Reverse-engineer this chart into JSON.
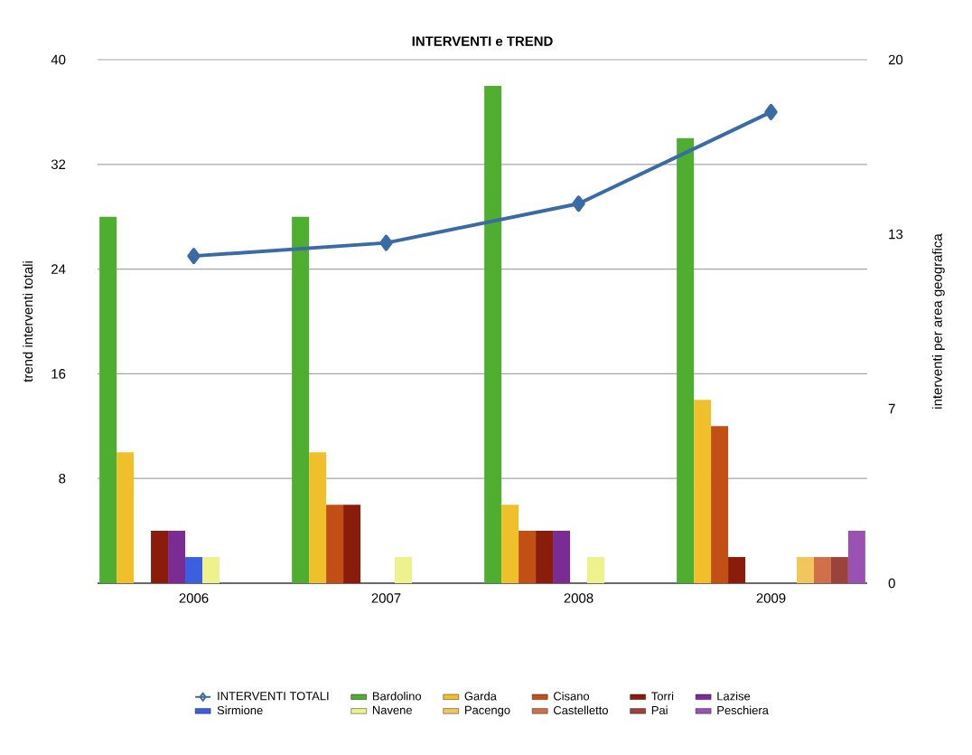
{
  "chart_data": {
    "type": "bar",
    "title": "INTERVENTI e TREND",
    "ylabel": "trend interventi totali",
    "y2label": "interventi per area geografica",
    "categories": [
      "2006",
      "2007",
      "2008",
      "2009"
    ],
    "series": [
      {
        "name": "INTERVENTI TOTALI",
        "type": "line",
        "axis": "y",
        "color": "#3b6ba5",
        "values": [
          25,
          26,
          29,
          36
        ]
      },
      {
        "name": "Bardolino",
        "axis": "y2",
        "color": "#4fae30",
        "values": [
          14,
          14,
          19,
          17
        ]
      },
      {
        "name": "Garda",
        "axis": "y2",
        "color": "#efbf2c",
        "values": [
          5,
          5,
          3,
          7
        ]
      },
      {
        "name": "Cisano",
        "axis": "y2",
        "color": "#c24f16",
        "values": [
          0,
          3,
          2,
          6
        ]
      },
      {
        "name": "Torri",
        "axis": "y2",
        "color": "#8a1c0c",
        "values": [
          2,
          3,
          2,
          1
        ]
      },
      {
        "name": "Lazise",
        "axis": "y2",
        "color": "#7a2c92",
        "values": [
          2,
          0,
          2,
          0
        ]
      },
      {
        "name": "Sirmione",
        "axis": "y2",
        "color": "#3b5fe0",
        "values": [
          1,
          0,
          0,
          0
        ]
      },
      {
        "name": "Navene",
        "axis": "y2",
        "color": "#eef28c",
        "values": [
          1,
          1,
          1,
          0
        ]
      },
      {
        "name": "Pacengo",
        "axis": "y2",
        "color": "#f0c75a",
        "values": [
          0,
          0,
          0,
          1
        ]
      },
      {
        "name": "Castelletto",
        "axis": "y2",
        "color": "#d0704a",
        "values": [
          0,
          0,
          0,
          1
        ]
      },
      {
        "name": "Pai",
        "axis": "y2",
        "color": "#9b433a",
        "values": [
          0,
          0,
          0,
          1
        ]
      },
      {
        "name": "Peschiera",
        "axis": "y2",
        "color": "#9a52b2",
        "values": [
          0,
          0,
          0,
          2
        ]
      }
    ],
    "ylim": [
      0,
      40
    ],
    "yticks": [
      {
        "value": 0,
        "label": null
      },
      8,
      16,
      24,
      32,
      40
    ],
    "y2lim": [
      0,
      20
    ],
    "y2ticks": [
      0,
      {
        "value": 6.667,
        "label": "7"
      },
      {
        "value": 13.333,
        "label": "13"
      },
      20
    ],
    "grid": "y",
    "legend": "bottom",
    "marker": "diamond",
    "line_style": "solid"
  }
}
